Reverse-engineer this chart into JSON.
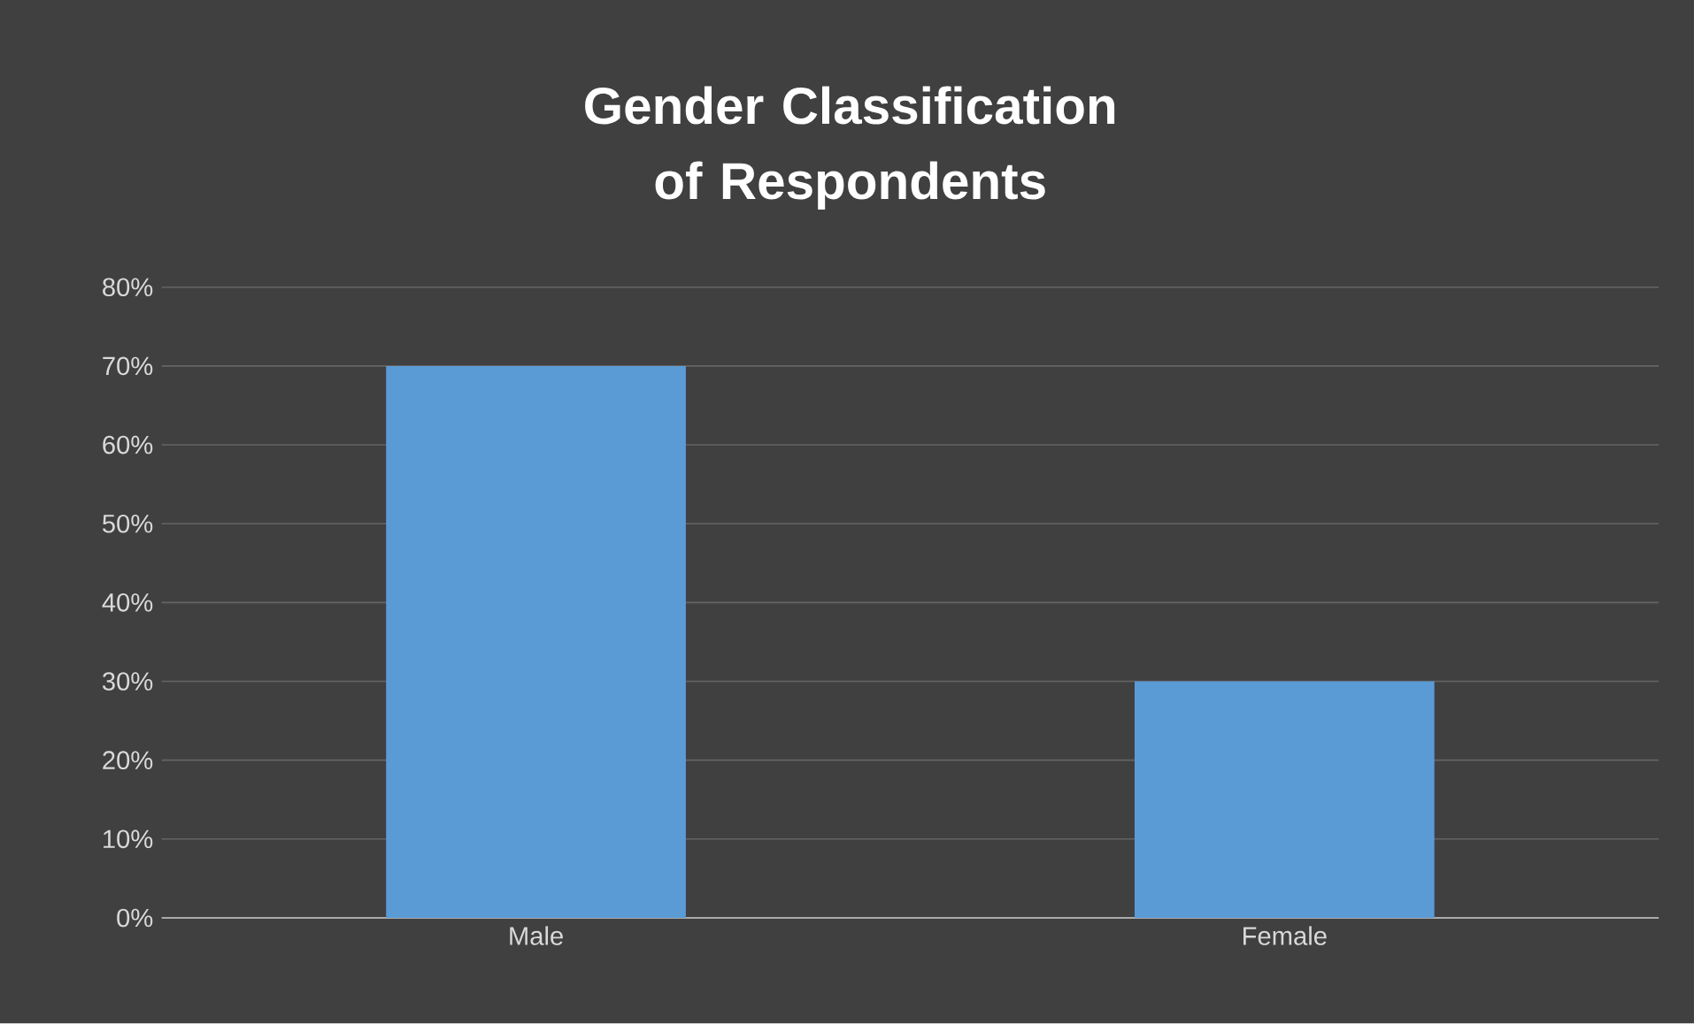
{
  "chart_data": {
    "type": "bar",
    "title": "Gender Classification of Respondents",
    "categories": [
      "Male",
      "Female"
    ],
    "values": [
      70,
      30
    ],
    "color": "#5b9bd5",
    "ylim": [
      0,
      80
    ],
    "yticks": [
      {
        "value": 0,
        "label": "0%"
      },
      {
        "value": 10,
        "label": "10%"
      },
      {
        "value": 20,
        "label": "20%"
      },
      {
        "value": 30,
        "label": "30%"
      },
      {
        "value": 40,
        "label": "40%"
      },
      {
        "value": 50,
        "label": "50%"
      },
      {
        "value": 60,
        "label": "60%"
      },
      {
        "value": 70,
        "label": "70%"
      },
      {
        "value": 80,
        "label": "80%"
      }
    ],
    "grid": "y"
  }
}
